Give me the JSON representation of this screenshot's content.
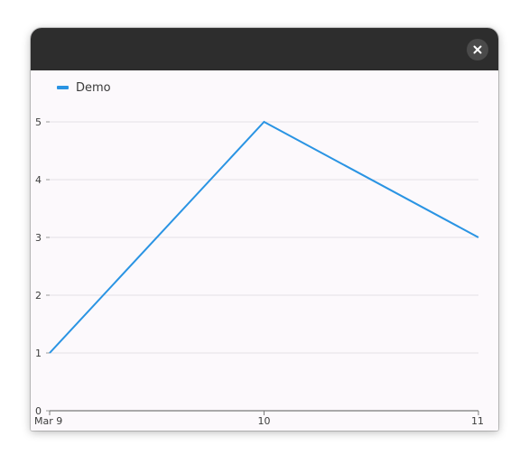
{
  "window": {
    "close_icon": "close-icon"
  },
  "legend": {
    "label": "Demo",
    "color": "#2a94e3"
  },
  "chart_data": {
    "type": "line",
    "x": [
      "Mar 9",
      "10",
      "11"
    ],
    "series": [
      {
        "name": "Demo",
        "values": [
          1,
          5,
          3
        ],
        "color": "#2a94e3"
      }
    ],
    "ylim": [
      0,
      5
    ],
    "yticks": [
      0,
      1,
      2,
      3,
      4,
      5
    ],
    "xticks": [
      "Mar 9",
      "10",
      "11"
    ],
    "grid": true,
    "legend_position": "top-left"
  }
}
